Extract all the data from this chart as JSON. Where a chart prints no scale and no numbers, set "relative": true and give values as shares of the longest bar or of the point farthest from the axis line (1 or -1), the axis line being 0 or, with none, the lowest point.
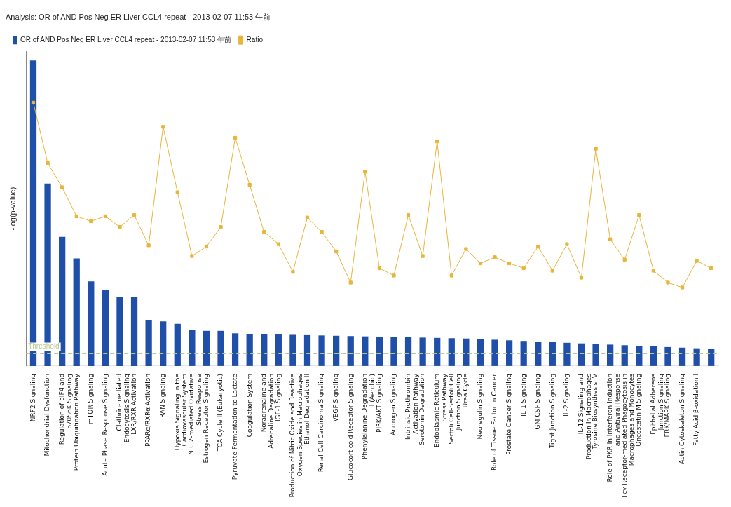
{
  "chart_data": {
    "type": "bar",
    "relative": true,
    "title": "Analysis: OR of AND Pos Neg ER Liver CCL4 repeat - 2013-02-07 11:53 午前",
    "ylabel": "-log(p-value)",
    "legend": "top left",
    "marker": "square",
    "categories": [
      "NRF2 Signaling",
      "Mitochondrial Dysfunction",
      "Regulation of eIF4 and p70S6K Signaling",
      "Protein Ubiquitination Pathway",
      "mTOR Signaling",
      "Acute Phase Response Signaling",
      "Clathrin-mediated Endocytosis Signaling",
      "LXR/RXR Activation",
      "PPARα/RXRα Activation",
      "RAN Signaling",
      "Hypoxia Signaling in the Cardiovascular System",
      "NRF2-mediated Oxidative Stress Response",
      "Estrogen Receptor Signaling",
      "TCA Cycle II (Eukaryotic)",
      "Pyruvate Fermentation to Lactate",
      "Coagulation System",
      "Noradrenaline and Adrenaline Degradation",
      "IGF-1 Signaling",
      "Production of Nitric Oxide and Reactive Oxygen Species in Macrophages",
      "Ethanol Degradation II",
      "Renal Cell Carcinoma Signaling",
      "VEGF Signaling",
      "Glucocorticoid Receptor Signaling",
      "Phenylalanine Degradation I (Aerobic)",
      "PI3K/AKT Signaling",
      "Androgen Signaling",
      "Intrinsic Prothrombin Activation Pathway",
      "Serotonin Degradation",
      "Endoplasmic Reticulum Stress Pathway",
      "Sertoli Cell-Sertoli Cell Junction Signaling",
      "Urea Cycle",
      "Neuregulin Signaling",
      "Role of Tissue Factor in Cancer",
      "Prostate Cancer Signaling",
      "IL-1 Signaling",
      "GM-CSF Signaling",
      "Tight Junction Signaling",
      "IL-2 Signaling",
      "IL-12 Signaling and Production in Macrophages",
      "Tyrosine Biosynthesis IV",
      "Role of PKR in Interferon Induction and Antiviral Response",
      "Fcγ Receptor-mediated Phagocytosis in Macrophages and Monocytes",
      "Oncostatin M Signaling",
      "Epithelial Adherens Junction Signaling",
      "ERK/MAPK Signaling",
      "Actin Cytoskeleton Signaling",
      "Fatty Acid β-oxidation I",
      null
    ],
    "series": [
      {
        "name": "OR of AND Pos Neg ER Liver CCL4 repeat - 2013-02-07 11:53 午前",
        "color": "#1f4fa8",
        "values": [
          1.0,
          0.597,
          0.423,
          0.352,
          0.277,
          0.249,
          0.225,
          0.225,
          0.15,
          0.146,
          0.138,
          0.119,
          0.115,
          0.115,
          0.107,
          0.105,
          0.104,
          0.103,
          0.102,
          0.101,
          0.1,
          0.099,
          0.098,
          0.097,
          0.096,
          0.095,
          0.094,
          0.093,
          0.092,
          0.091,
          0.09,
          0.088,
          0.086,
          0.084,
          0.082,
          0.08,
          0.078,
          0.076,
          0.074,
          0.072,
          0.07,
          0.068,
          0.066,
          0.064,
          0.062,
          0.06,
          0.058,
          0.056
        ]
      },
      {
        "name": "Ratio",
        "type": "line",
        "color": "#e8b53a",
        "values": [
          0.862,
          0.664,
          0.585,
          0.49,
          0.474,
          0.49,
          0.455,
          0.494,
          0.395,
          0.783,
          0.569,
          0.36,
          0.391,
          0.455,
          0.747,
          0.593,
          0.439,
          0.399,
          0.308,
          0.486,
          0.439,
          0.375,
          0.273,
          0.636,
          0.32,
          0.296,
          0.494,
          0.36,
          0.735,
          0.296,
          0.383,
          0.336,
          0.356,
          0.336,
          0.32,
          0.391,
          0.312,
          0.399,
          0.289,
          0.711,
          0.415,
          0.348,
          0.494,
          0.312,
          0.273,
          0.257,
          0.344,
          0.32
        ]
      }
    ],
    "ref_lines": [
      {
        "axis": "y",
        "value": 0.04,
        "label": "Threshold",
        "color": "#b8c98a",
        "line_style": "dashed"
      }
    ]
  }
}
